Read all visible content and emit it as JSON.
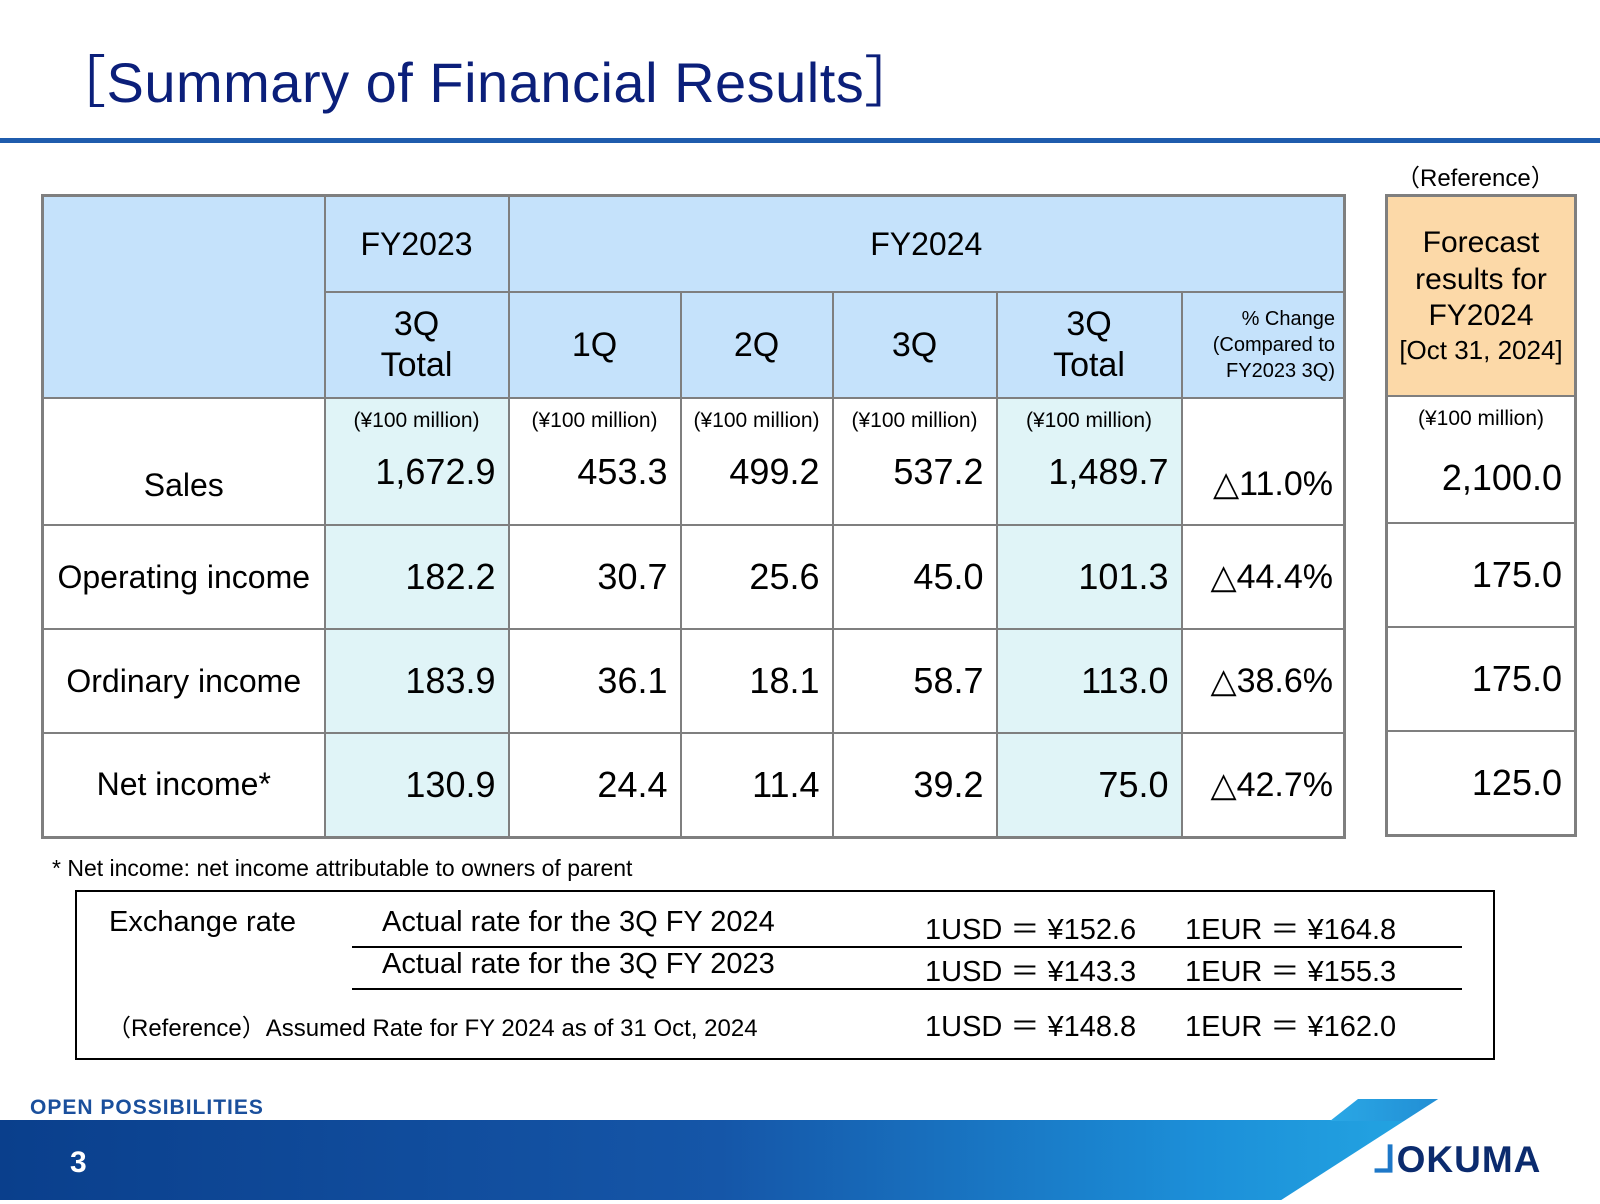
{
  "title": "［Summary of Financial Results］",
  "reference_note": "（Reference）",
  "table": {
    "fy2023": "FY2023",
    "fy2024": "FY2024",
    "col_3q_total_a": "3Q",
    "col_3q_total_b": "Total",
    "col_1q": "1Q",
    "col_2q": "2Q",
    "col_3q": "3Q",
    "col_pct_a": "% Change",
    "col_pct_b": "(Compared to",
    "col_pct_c": "FY2023 3Q)",
    "unit": "(¥100 million)",
    "rows": [
      {
        "label": "Sales",
        "fy2023_3q_total": "1,672.9",
        "q1": "453.3",
        "q2": "499.2",
        "q3": "537.2",
        "fy2024_3q_total": "1,489.7",
        "pct_change": "△11.0%",
        "forecast": "2,100.0"
      },
      {
        "label": "Operating income",
        "fy2023_3q_total": "182.2",
        "q1": "30.7",
        "q2": "25.6",
        "q3": "45.0",
        "fy2024_3q_total": "101.3",
        "pct_change": "△44.4%",
        "forecast": "175.0"
      },
      {
        "label": "Ordinary income",
        "fy2023_3q_total": "183.9",
        "q1": "36.1",
        "q2": "18.1",
        "q3": "58.7",
        "fy2024_3q_total": "113.0",
        "pct_change": "△38.6%",
        "forecast": "175.0"
      },
      {
        "label": "Net income*",
        "fy2023_3q_total": "130.9",
        "q1": "24.4",
        "q2": "11.4",
        "q3": "39.2",
        "fy2024_3q_total": "75.0",
        "pct_change": "△42.7%",
        "forecast": "125.0"
      }
    ]
  },
  "forecast": {
    "line1": "Forecast",
    "line2": "results for",
    "line3": "FY2024",
    "line4": "[Oct 31, 2024]",
    "unit": "(¥100 million)"
  },
  "footnote": "* Net income: net income attributable to owners of parent",
  "exchange": {
    "label": "Exchange rate",
    "rates": [
      {
        "desc": "Actual rate for the 3Q FY 2024",
        "usd": "1USD ＝ ¥152.6",
        "eur": "1EUR ＝ ¥164.8"
      },
      {
        "desc": "Actual rate for the 3Q FY 2023",
        "usd": "1USD ＝ ¥143.3",
        "eur": "1EUR ＝ ¥155.3"
      },
      {
        "desc": "（Reference）Assumed Rate for FY 2024 as of 31 Oct, 2024",
        "usd": "1USD ＝ ¥148.8",
        "eur": "1EUR ＝ ¥162.0"
      }
    ]
  },
  "footer": {
    "tagline": "OPEN POSSIBILITIES",
    "page_number": "3",
    "logo_text": "OKUMA",
    "logo_mark": "⅃"
  }
}
